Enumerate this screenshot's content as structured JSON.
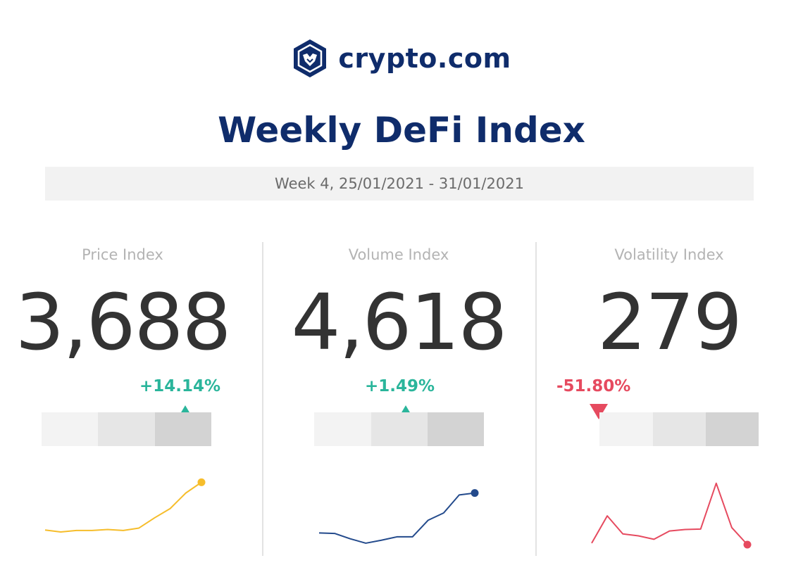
{
  "brand": {
    "name": "crypto.com",
    "logo_icon": "crypto-com-lion-shield-icon",
    "color": "#0f2c6b"
  },
  "title": "Weekly DeFi Index",
  "period": "Week 4, 25/01/2021 - 31/01/2021",
  "colors": {
    "up": "#2ab59b",
    "down": "#e64a5f",
    "title": "#0f2c6b",
    "value": "#333333"
  },
  "chart_data": [
    {
      "type": "line",
      "title": "Price Index",
      "headline_value": "3,688",
      "change": "+14.14%",
      "direction": "up",
      "gauge_level": "high",
      "color": "#f6bd2b",
      "values": [
        3.0,
        2.6,
        2.9,
        2.9,
        3.1,
        2.9,
        3.4,
        5.5,
        7.4,
        10.6,
        12.8
      ]
    },
    {
      "type": "line",
      "title": "Volume Index",
      "headline_value": "4,618",
      "change": "+1.49%",
      "direction": "up",
      "gauge_level": "medium",
      "color": "#234a8c",
      "values": [
        2.4,
        2.3,
        1.2,
        0.3,
        0.9,
        1.6,
        1.6,
        5.0,
        6.5,
        10.2,
        10.6
      ]
    },
    {
      "type": "line",
      "title": "Volatility Index",
      "headline_value": "279",
      "change": "-51.80%",
      "direction": "down",
      "gauge_level": "low",
      "color": "#e64a5f",
      "values": [
        0.3,
        5.9,
        2.2,
        1.8,
        1.1,
        2.8,
        3.1,
        3.2,
        12.6,
        3.5,
        0.0
      ]
    }
  ]
}
